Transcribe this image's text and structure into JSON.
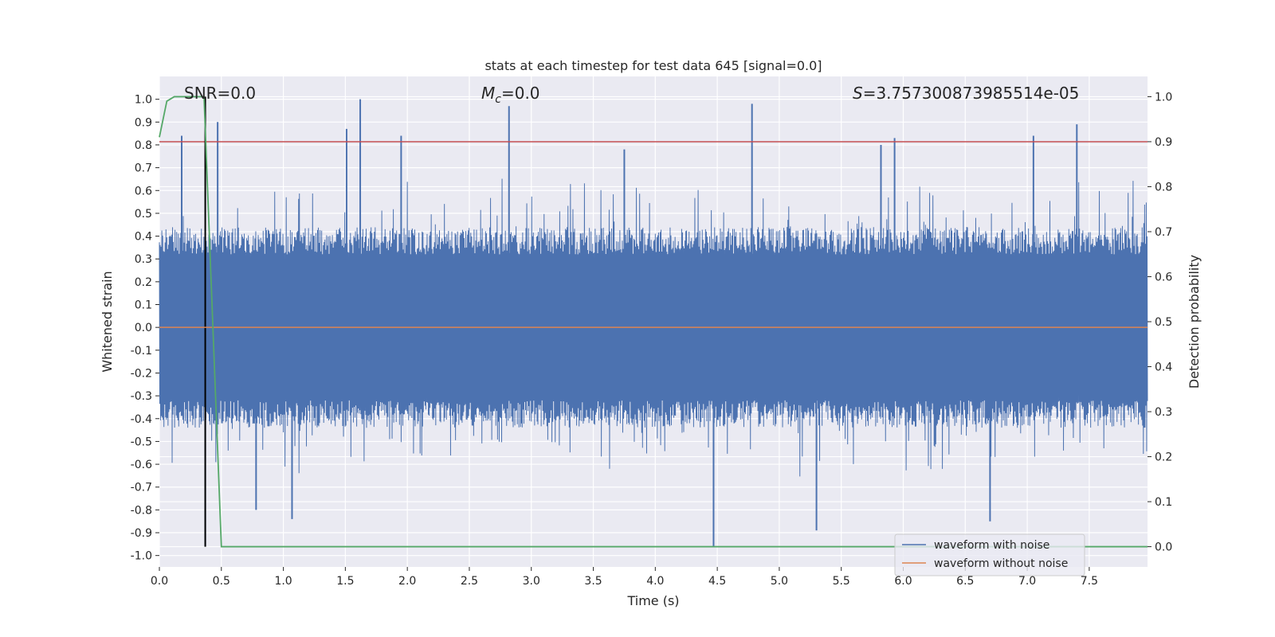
{
  "chart_data": {
    "type": "line",
    "title": "stats at each timestep for test data 645 [signal=0.0]",
    "xlabel": "Time (s)",
    "ylabel_left": "Whitened strain",
    "ylabel_right": "Detection probability",
    "xlim": [
      0.0,
      7.97
    ],
    "ylim_left": [
      -1.05,
      1.1
    ],
    "ylim_right": [
      -0.045,
      1.045
    ],
    "x_ticks": [
      "0.0",
      "0.5",
      "1.0",
      "1.5",
      "2.0",
      "2.5",
      "3.0",
      "3.5",
      "4.0",
      "4.5",
      "5.0",
      "5.5",
      "6.0",
      "6.5",
      "7.0",
      "7.5"
    ],
    "x_tick_values": [
      0.0,
      0.5,
      1.0,
      1.5,
      2.0,
      2.5,
      3.0,
      3.5,
      4.0,
      4.5,
      5.0,
      5.5,
      6.0,
      6.5,
      7.0,
      7.5
    ],
    "y_left_ticks": [
      "1.0",
      "0.9",
      "0.8",
      "0.7",
      "0.6",
      "0.5",
      "0.4",
      "0.3",
      "0.2",
      "0.1",
      "0.0",
      "-0.1",
      "-0.2",
      "-0.3",
      "-0.4",
      "-0.5",
      "-0.6",
      "-0.7",
      "-0.8",
      "-0.9",
      "-1.0"
    ],
    "y_left_tick_values": [
      1.0,
      0.9,
      0.8,
      0.7,
      0.6,
      0.5,
      0.4,
      0.3,
      0.2,
      0.1,
      0.0,
      -0.1,
      -0.2,
      -0.3,
      -0.4,
      -0.5,
      -0.6,
      -0.7,
      -0.8,
      -0.9,
      -1.0
    ],
    "y_right_ticks": [
      "1.0",
      "0.9",
      "0.8",
      "0.7",
      "0.6",
      "0.5",
      "0.4",
      "0.3",
      "0.2",
      "0.1",
      "0.0"
    ],
    "y_right_tick_values": [
      1.0,
      0.9,
      0.8,
      0.7,
      0.6,
      0.5,
      0.4,
      0.3,
      0.2,
      0.1,
      0.0
    ],
    "annotations": {
      "snr": "SNR=0.0",
      "mc_symbol": "M",
      "mc_sub": "c",
      "mc_value": "=0.0",
      "s_symbol": "S",
      "s_value": "=3.757300873985514e-05"
    },
    "series": [
      {
        "name": "waveform with noise",
        "color": "#4c72b0",
        "axis": "left",
        "description_values": "dense noise, typical envelope +/-0.45, spikes",
        "spikes": [
          {
            "x": 0.18,
            "y": 0.84
          },
          {
            "x": 0.37,
            "y": -0.96
          },
          {
            "x": 0.47,
            "y": 0.9
          },
          {
            "x": 1.51,
            "y": 0.87
          },
          {
            "x": 1.62,
            "y": 1.0
          },
          {
            "x": 1.95,
            "y": 0.84
          },
          {
            "x": 2.82,
            "y": 0.97
          },
          {
            "x": 3.75,
            "y": 0.78
          },
          {
            "x": 4.47,
            "y": -0.96
          },
          {
            "x": 4.78,
            "y": 0.98
          },
          {
            "x": 5.3,
            "y": -0.89
          },
          {
            "x": 5.82,
            "y": 0.8
          },
          {
            "x": 5.93,
            "y": 0.83
          },
          {
            "x": 6.7,
            "y": -0.85
          },
          {
            "x": 7.05,
            "y": 0.84
          },
          {
            "x": 7.4,
            "y": 0.89
          },
          {
            "x": 0.78,
            "y": -0.8
          },
          {
            "x": 1.07,
            "y": -0.84
          }
        ]
      },
      {
        "name": "waveform without noise",
        "color": "#dd8452",
        "axis": "left",
        "x": [
          0.0,
          7.97
        ],
        "y": [
          0.0,
          0.0
        ]
      },
      {
        "name": "detection probability",
        "color": "#55a868",
        "axis": "right",
        "x": [
          0.0,
          0.06,
          0.12,
          0.25,
          0.3,
          0.36,
          0.5,
          7.97
        ],
        "y": [
          0.91,
          0.99,
          1.0,
          1.0,
          1.0,
          1.0,
          0.0,
          0.0
        ]
      }
    ],
    "reference_lines": [
      {
        "name": "threshold",
        "color": "#c44e52",
        "axis": "right",
        "y": 0.9
      },
      {
        "name": "trigger-time",
        "color": "#000000",
        "axis": "right",
        "x": 0.37,
        "y_range": [
          0.0,
          1.0
        ]
      }
    ],
    "legend": {
      "position": "lower-right",
      "entries": [
        {
          "label": "waveform with noise",
          "color": "#4c72b0"
        },
        {
          "label": "waveform without noise",
          "color": "#dd8452"
        }
      ]
    },
    "colors": {
      "plot_bg": "#eaeaf2",
      "grid": "#ffffff",
      "text": "#262626"
    }
  }
}
